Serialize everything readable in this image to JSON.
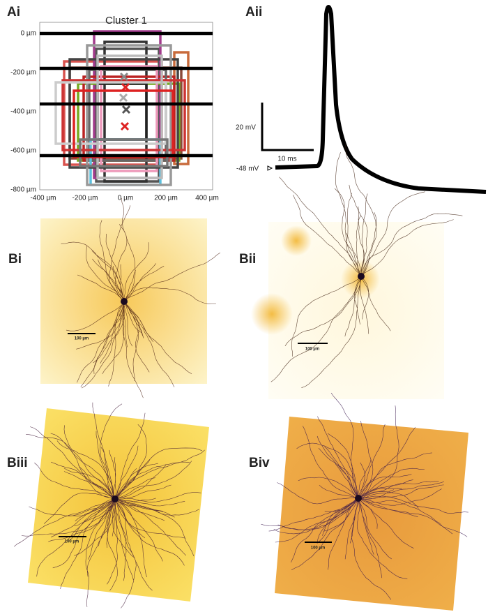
{
  "panels": {
    "Ai": {
      "label": "Ai",
      "title": "Cluster 1",
      "y_tick_labels": [
        "0 µm",
        "-200 µm",
        "-400 µm",
        "-600 µm",
        "-800 µm"
      ],
      "x_tick_labels": [
        "-400 µm",
        "-200 µm",
        "0 µm",
        "200 µm",
        "400 µm"
      ]
    },
    "Aii": {
      "label": "Aii",
      "scale_y": "20 mV",
      "scale_x": "10 ms",
      "baseline": "-48 mV"
    },
    "Bi": {
      "label": "Bi",
      "scale_bar": "100 µm"
    },
    "Bii": {
      "label": "Bii",
      "scale_bar": "100 µm"
    },
    "Biii": {
      "label": "Biii",
      "scale_bar": "100 µm"
    },
    "Biv": {
      "label": "Biv",
      "scale_bar": "100 µm"
    }
  }
}
